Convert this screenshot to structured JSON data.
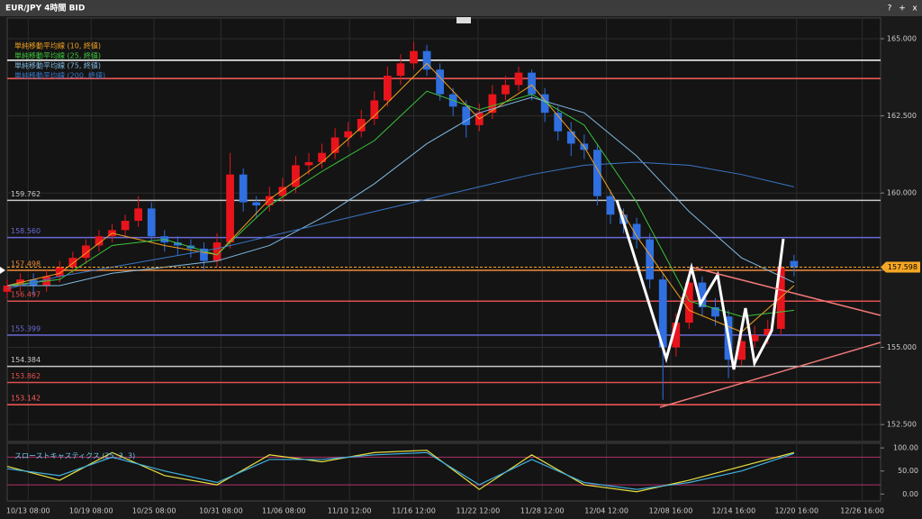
{
  "window": {
    "title": "EUR/JPY 4時間 BID",
    "buttons": [
      "?",
      "+",
      "x"
    ]
  },
  "chart_data": [
    {
      "type": "candlestick",
      "up_color": "#e8141c",
      "down_color": "#2f6fe0",
      "grid": true,
      "xlim": [
        0,
        66.6
      ],
      "xticks": [
        {
          "value": 1.6,
          "label": "10/13 08:00"
        },
        {
          "value": 6.4,
          "label": "10/19 08:00"
        },
        {
          "value": 11.2,
          "label": "10/25 08:00"
        },
        {
          "value": 16.3,
          "label": "10/31 08:00"
        },
        {
          "value": 21.1,
          "label": "11/06 08:00"
        },
        {
          "value": 26.1,
          "label": "11/10 12:00"
        },
        {
          "value": 31.0,
          "label": "11/16 12:00"
        },
        {
          "value": 35.9,
          "label": "11/22 12:00"
        },
        {
          "value": 40.8,
          "label": "11/28 12:00"
        },
        {
          "value": 45.7,
          "label": "12/04 12:00"
        },
        {
          "value": 50.6,
          "label": "12/08 16:00"
        },
        {
          "value": 55.4,
          "label": "12/14 16:00"
        },
        {
          "value": 60.2,
          "label": "12/20 16:00"
        },
        {
          "value": 65.2,
          "label": "12/26 16:00"
        }
      ],
      "ylim": [
        151.95,
        165.67
      ],
      "yticks": [
        {
          "value": 152.5,
          "label": "152.500"
        },
        {
          "value": 155,
          "label": "155.000"
        },
        {
          "value": 157.5,
          "label": "157.500"
        },
        {
          "value": 160,
          "label": "160.000"
        },
        {
          "value": 162.5,
          "label": "162.500"
        },
        {
          "value": 165,
          "label": "165.000"
        }
      ],
      "candles": [
        [
          156.8,
          157.2,
          156.6,
          157.0
        ],
        [
          157.0,
          157.4,
          156.8,
          157.2
        ],
        [
          157.2,
          157.4,
          156.7,
          157.0
        ],
        [
          157.0,
          157.5,
          156.8,
          157.3
        ],
        [
          157.3,
          157.8,
          157.1,
          157.6
        ],
        [
          157.6,
          158.1,
          157.4,
          157.9
        ],
        [
          157.9,
          158.5,
          157.7,
          158.3
        ],
        [
          158.3,
          158.8,
          158.1,
          158.6
        ],
        [
          158.6,
          159.0,
          158.4,
          158.8
        ],
        [
          158.8,
          159.3,
          158.6,
          159.1
        ],
        [
          159.1,
          159.9,
          158.9,
          159.5
        ],
        [
          159.5,
          159.7,
          158.4,
          158.6
        ],
        [
          158.6,
          158.8,
          158.1,
          158.4
        ],
        [
          158.4,
          158.6,
          158.0,
          158.3
        ],
        [
          158.3,
          158.5,
          157.9,
          158.2
        ],
        [
          158.2,
          158.4,
          157.5,
          157.8
        ],
        [
          157.8,
          158.7,
          157.6,
          158.4
        ],
        [
          158.4,
          161.3,
          158.2,
          160.6
        ],
        [
          160.6,
          160.8,
          159.4,
          159.7
        ],
        [
          159.7,
          159.9,
          159.2,
          159.6
        ],
        [
          159.6,
          160.2,
          159.4,
          159.9
        ],
        [
          159.9,
          160.5,
          159.7,
          160.2
        ],
        [
          160.2,
          161.2,
          160.0,
          160.9
        ],
        [
          160.9,
          161.3,
          160.6,
          161.0
        ],
        [
          161.0,
          161.6,
          160.8,
          161.3
        ],
        [
          161.3,
          162.1,
          161.1,
          161.8
        ],
        [
          161.8,
          162.3,
          161.5,
          162.0
        ],
        [
          162.0,
          162.7,
          161.8,
          162.4
        ],
        [
          162.4,
          163.3,
          162.2,
          163.0
        ],
        [
          163.0,
          164.1,
          162.8,
          163.8
        ],
        [
          163.8,
          164.5,
          163.5,
          164.2
        ],
        [
          164.2,
          164.9,
          164.0,
          164.6
        ],
        [
          164.6,
          164.8,
          163.8,
          164.0
        ],
        [
          164.0,
          164.2,
          163.0,
          163.2
        ],
        [
          163.2,
          163.4,
          162.5,
          162.8
        ],
        [
          162.8,
          163.0,
          161.8,
          162.2
        ],
        [
          162.2,
          162.9,
          162.0,
          162.6
        ],
        [
          162.6,
          163.5,
          162.4,
          163.2
        ],
        [
          163.2,
          163.8,
          163.0,
          163.5
        ],
        [
          163.5,
          164.1,
          163.3,
          163.9
        ],
        [
          163.9,
          164.0,
          163.0,
          163.2
        ],
        [
          163.2,
          163.4,
          162.3,
          162.6
        ],
        [
          162.6,
          162.8,
          161.7,
          162.0
        ],
        [
          162.0,
          162.3,
          161.2,
          161.6
        ],
        [
          161.6,
          161.9,
          161.1,
          161.4
        ],
        [
          161.4,
          161.6,
          159.6,
          159.9
        ],
        [
          159.9,
          160.1,
          159.0,
          159.3
        ],
        [
          159.3,
          159.5,
          158.7,
          159.0
        ],
        [
          159.0,
          159.2,
          158.2,
          158.5
        ],
        [
          158.5,
          158.7,
          156.9,
          157.2
        ],
        [
          157.2,
          157.4,
          153.3,
          155.0
        ],
        [
          155.0,
          156.1,
          154.7,
          155.8
        ],
        [
          155.8,
          157.5,
          155.6,
          157.1
        ],
        [
          157.1,
          157.3,
          156.0,
          156.3
        ],
        [
          156.3,
          156.6,
          155.7,
          156.0
        ],
        [
          156.0,
          156.2,
          154.0,
          154.6
        ],
        [
          154.6,
          155.5,
          154.4,
          155.2
        ],
        [
          155.2,
          155.7,
          155.0,
          155.4
        ],
        [
          155.4,
          155.9,
          155.1,
          155.6
        ],
        [
          155.6,
          158.0,
          155.4,
          157.6
        ],
        [
          157.8,
          158.0,
          157.3,
          157.6
        ]
      ],
      "x": [
        0,
        4,
        8,
        12,
        16,
        20,
        24,
        28,
        32,
        36,
        40,
        44,
        48,
        52,
        56,
        60
      ],
      "series": [
        {
          "name": "単純移動平均線 (10, 終値)",
          "color": "#f0a020",
          "values": [
            157.0,
            157.4,
            158.7,
            158.3,
            158.0,
            159.8,
            161.0,
            162.5,
            164.2,
            162.4,
            163.5,
            161.5,
            158.6,
            156.2,
            155.5,
            157.0
          ]
        },
        {
          "name": "単純移動平均線 (25, 終値)",
          "color": "#3cc43c",
          "values": [
            157.0,
            157.2,
            158.3,
            158.5,
            158.0,
            159.6,
            160.7,
            161.7,
            163.3,
            162.7,
            163.2,
            162.2,
            159.7,
            156.5,
            156.0,
            156.2
          ]
        },
        {
          "name": "単純移動平均線 (75, 終値)",
          "color": "#7fb8e0",
          "values": [
            157.0,
            157.0,
            157.4,
            157.6,
            157.8,
            158.3,
            159.2,
            160.3,
            161.6,
            162.6,
            163.1,
            162.6,
            161.2,
            159.4,
            157.9,
            157.1
          ]
        },
        {
          "name": "単純移動平均線 (200, 終値)",
          "color": "#3a78c8",
          "values": [
            156.9,
            157.3,
            157.6,
            157.9,
            158.2,
            158.6,
            159.0,
            159.4,
            159.8,
            160.2,
            160.6,
            160.9,
            161.0,
            160.9,
            160.6,
            160.2
          ]
        }
      ],
      "levels": [
        {
          "value": 164.3,
          "color": "#ffffff"
        },
        {
          "value": 163.71,
          "color": "#ff5a5a"
        },
        {
          "value": 159.762,
          "label": "159.762",
          "color": "#c8c8c8"
        },
        {
          "value": 158.56,
          "label": "158.560",
          "color": "#6a6ad8"
        },
        {
          "value": 157.498,
          "label": "157.498",
          "color": "#f08a3a"
        },
        {
          "value": 156.497,
          "label": "156.497",
          "color": "#e05050"
        },
        {
          "value": 155.399,
          "label": "155.399",
          "color": "#6a6ad8"
        },
        {
          "value": 154.384,
          "label": "154.384",
          "color": "#c8c8c8"
        },
        {
          "value": 153.862,
          "label": "153.862",
          "color": "#e05050"
        },
        {
          "value": 153.142,
          "label": "153.142",
          "color": "#ff5a5a"
        }
      ],
      "current_price": {
        "value": 157.598,
        "label": "157.598",
        "color": "#f5a623"
      }
    },
    {
      "type": "line",
      "title": "スローストキャスティクス (25, 3, 3)",
      "x": [
        0,
        4,
        8,
        12,
        16,
        20,
        24,
        28,
        32,
        36,
        40,
        44,
        48,
        52,
        56,
        60
      ],
      "xlim": [
        0,
        66.6
      ],
      "ylim": [
        -15,
        110
      ],
      "yticks": [
        {
          "value": 0,
          "label": "0.00"
        },
        {
          "value": 50,
          "label": "50.00"
        },
        {
          "value": 100,
          "label": "100.00"
        }
      ],
      "levels": [
        {
          "value": 80,
          "color": "#b0306a"
        },
        {
          "value": 20,
          "color": "#b0306a"
        }
      ],
      "series": [
        {
          "color": "#e8e040",
          "values": [
            60,
            30,
            90,
            40,
            20,
            85,
            70,
            90,
            95,
            10,
            85,
            20,
            5,
            30,
            60,
            90
          ]
        },
        {
          "color": "#40b0e0",
          "values": [
            55,
            40,
            80,
            50,
            25,
            75,
            75,
            85,
            90,
            20,
            75,
            25,
            10,
            25,
            50,
            88
          ]
        }
      ]
    }
  ]
}
